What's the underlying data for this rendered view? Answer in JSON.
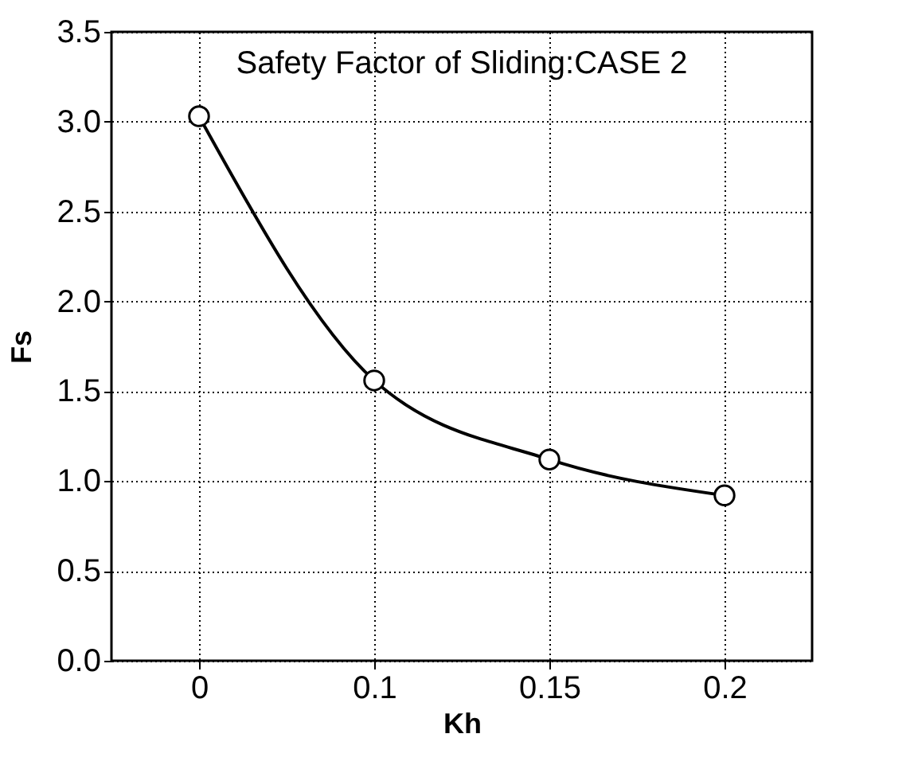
{
  "chart_data": {
    "type": "line",
    "title": "Safety Factor of Sliding:CASE 2",
    "xlabel": "Kh",
    "ylabel": "Fs",
    "categories": [
      "0",
      "0.1",
      "0.15",
      "0.2"
    ],
    "series": [
      {
        "color": "#000000",
        "values": [
          3.03,
          1.56,
          1.12,
          0.92
        ]
      }
    ],
    "ylim": [
      0,
      3.5
    ],
    "yticks": [
      {
        "value": 0,
        "label": "0.0"
      },
      {
        "value": 0.5,
        "label": "0.5"
      },
      {
        "value": 1,
        "label": "1.0"
      },
      {
        "value": 1.5,
        "label": "1.5"
      },
      {
        "value": 2,
        "label": "2.0"
      },
      {
        "value": 2.5,
        "label": "2.5"
      },
      {
        "value": 3,
        "label": "3.0"
      },
      {
        "value": 3.5,
        "label": "3.5"
      }
    ],
    "grid": true,
    "marker": "circle",
    "line_style": "solid"
  }
}
